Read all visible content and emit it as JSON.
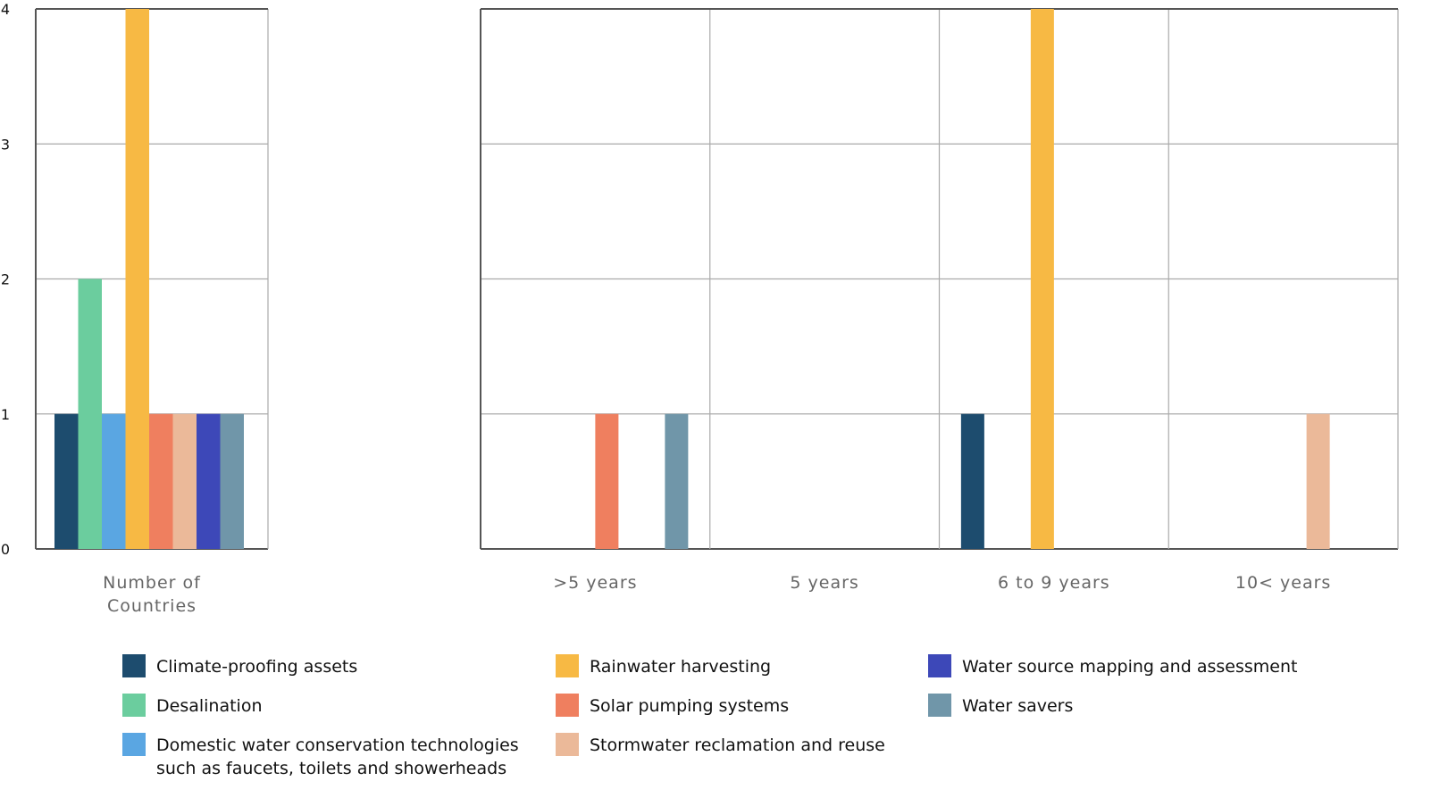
{
  "chart_data": [
    {
      "type": "bar",
      "categories": [
        "Number of Countries"
      ],
      "category_lines": [
        [
          "Number of",
          "Countries"
        ]
      ],
      "series": [
        {
          "name": "Climate-proofing assets",
          "values": [
            1
          ]
        },
        {
          "name": "Desalination",
          "values": [
            2
          ]
        },
        {
          "name": "Domestic water conservation technologies such as faucets, toilets and showerheads",
          "values": [
            1
          ]
        },
        {
          "name": "Rainwater harvesting",
          "values": [
            4
          ]
        },
        {
          "name": "Solar pumping systems",
          "values": [
            1
          ]
        },
        {
          "name": "Stormwater reclamation and reuse",
          "values": [
            1
          ]
        },
        {
          "name": "Water source mapping and assessment",
          "values": [
            1
          ]
        },
        {
          "name": "Water savers",
          "values": [
            1
          ]
        }
      ],
      "ylim": [
        0,
        4
      ],
      "yticks": [
        "0",
        "1",
        "2",
        "3",
        "4"
      ],
      "grid": true
    },
    {
      "type": "bar",
      "categories": [
        ">5 years",
        "5 years",
        "6 to 9 years",
        "10< years"
      ],
      "series": [
        {
          "name": "Climate-proofing assets",
          "values": [
            0,
            0,
            1,
            0
          ]
        },
        {
          "name": "Desalination",
          "values": [
            0,
            0,
            0,
            0
          ]
        },
        {
          "name": "Domestic water conservation technologies such as faucets, toilets and showerheads",
          "values": [
            0,
            0,
            0,
            0
          ]
        },
        {
          "name": "Rainwater harvesting",
          "values": [
            0,
            0,
            4,
            0
          ]
        },
        {
          "name": "Solar pumping systems",
          "values": [
            1,
            0,
            0,
            0
          ]
        },
        {
          "name": "Stormwater reclamation and reuse",
          "values": [
            0,
            0,
            0,
            1
          ]
        },
        {
          "name": "Water source mapping and assessment",
          "values": [
            0,
            0,
            0,
            0
          ]
        },
        {
          "name": "Water savers",
          "values": [
            1,
            0,
            0,
            0
          ]
        }
      ],
      "ylim": [
        0,
        4
      ],
      "grid": true
    }
  ],
  "colors": [
    "#1d4c6e",
    "#6bcd9e",
    "#5aa6e2",
    "#f7b944",
    "#ef7f5f",
    "#ebb999",
    "#3d48b8",
    "#7096a9"
  ],
  "legend": {
    "placement": "bottom",
    "items": [
      {
        "lines": [
          "Climate-proofing assets"
        ]
      },
      {
        "lines": [
          "Desalination"
        ]
      },
      {
        "lines": [
          "Domestic water conservation technologies",
          "such as faucets, toilets and showerheads"
        ]
      },
      {
        "lines": [
          "Rainwater harvesting"
        ]
      },
      {
        "lines": [
          "Solar pumping systems"
        ]
      },
      {
        "lines": [
          "Stormwater reclamation and reuse"
        ]
      },
      {
        "lines": [
          "Water source mapping and assessment"
        ]
      },
      {
        "lines": [
          "Water savers"
        ]
      }
    ]
  }
}
